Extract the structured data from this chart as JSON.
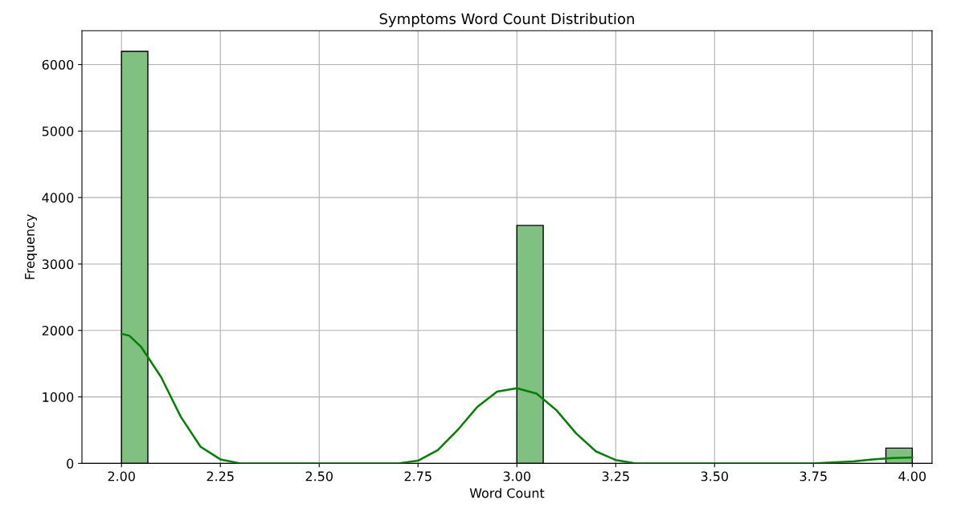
{
  "chart_data": {
    "type": "histogram",
    "title": "Symptoms Word Count Distribution",
    "xlabel": "Word Count",
    "ylabel": "Frequency",
    "bins": [
      2.0,
      2.0667,
      2.1333,
      2.2,
      2.2667,
      2.3333,
      2.4,
      2.4667,
      2.5333,
      2.6,
      2.6667,
      2.7333,
      2.8,
      2.8667,
      2.9333,
      3.0,
      3.0667,
      3.1333,
      3.2,
      3.2667,
      3.3333,
      3.4,
      3.4667,
      3.5333,
      3.6,
      3.6667,
      3.7333,
      3.8,
      3.8667,
      3.9333,
      4.0
    ],
    "values": [
      6200,
      0,
      0,
      0,
      0,
      0,
      0,
      0,
      0,
      0,
      0,
      0,
      0,
      0,
      0,
      3580,
      0,
      0,
      0,
      0,
      0,
      0,
      0,
      0,
      0,
      0,
      0,
      0,
      0,
      230
    ],
    "color": "#80c080",
    "series": [
      {
        "type": "line",
        "color": "#008000",
        "x": [
          2.0,
          2.02,
          2.05,
          2.1,
          2.15,
          2.2,
          2.25,
          2.3,
          2.5,
          2.7,
          2.75,
          2.8,
          2.85,
          2.9,
          2.95,
          3.0,
          3.05,
          3.1,
          3.15,
          3.2,
          3.25,
          3.3,
          3.5,
          3.75,
          3.85,
          3.9,
          3.95,
          4.0
        ],
        "values": [
          1950,
          1920,
          1750,
          1300,
          700,
          250,
          60,
          0,
          0,
          0,
          40,
          200,
          500,
          850,
          1080,
          1130,
          1050,
          800,
          450,
          180,
          50,
          0,
          0,
          0,
          30,
          60,
          80,
          90
        ]
      }
    ],
    "xlim": [
      1.9,
      4.05
    ],
    "ylim": [
      0,
      6510
    ],
    "xticks": [
      {
        "value": 2.0,
        "label": "2.00"
      },
      {
        "value": 2.25,
        "label": "2.25"
      },
      {
        "value": 2.5,
        "label": "2.50"
      },
      {
        "value": 2.75,
        "label": "2.75"
      },
      {
        "value": 3.0,
        "label": "3.00"
      },
      {
        "value": 3.25,
        "label": "3.25"
      },
      {
        "value": 3.5,
        "label": "3.50"
      },
      {
        "value": 3.75,
        "label": "3.75"
      },
      {
        "value": 4.0,
        "label": "4.00"
      }
    ],
    "yticks": [
      0,
      1000,
      2000,
      3000,
      4000,
      5000,
      6000
    ],
    "grid": true
  }
}
